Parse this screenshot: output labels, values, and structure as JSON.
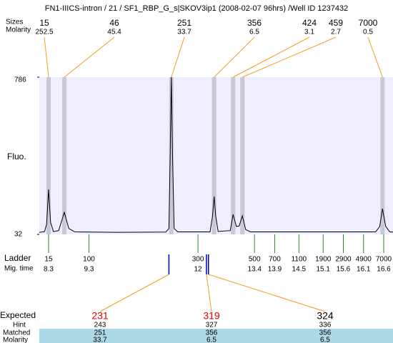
{
  "chart_data": {
    "type": "line",
    "title": "FN1-IIICS-intron / 21 / SF1_RBP_G_s|SKOV3ip1 (2008-02-07 96hrs) /Well ID 1237432",
    "sizes_label": "Sizes",
    "molarity_label": "Molarity",
    "y_label": "Fluo.",
    "ylim": [
      32,
      786
    ],
    "yticks": [
      32,
      786
    ],
    "xlim": [
      8.07,
      16.83
    ],
    "peaks": [
      {
        "size": 15,
        "molarity": 252.5,
        "time": 8.3
      },
      {
        "size": 46,
        "molarity": 45.4,
        "time": 8.69
      },
      {
        "size": 251,
        "molarity": 33.7,
        "time": 11.34
      },
      {
        "size": 356,
        "molarity": 6.5,
        "time": 12.4
      },
      {
        "size": 424,
        "molarity": 3.1,
        "time": 12.87
      },
      {
        "size": 459,
        "molarity": 2.7,
        "time": 13.1
      },
      {
        "size": 7000,
        "molarity": 0.5,
        "time": 16.57
      }
    ],
    "x": [
      8.07,
      8.2,
      8.25,
      8.3,
      8.35,
      8.42,
      8.55,
      8.69,
      8.8,
      8.95,
      10,
      11.2,
      11.28,
      11.31,
      11.34,
      11.37,
      11.41,
      11.5,
      12.3,
      12.36,
      12.4,
      12.44,
      12.5,
      12.8,
      12.87,
      12.95,
      13.02,
      13.1,
      13.18,
      13.3,
      16.4,
      16.5,
      16.57,
      16.65,
      16.75,
      16.83
    ],
    "values": [
      42,
      45,
      80,
      248,
      90,
      45,
      50,
      138,
      60,
      44,
      42,
      43,
      60,
      400,
      786,
      400,
      60,
      44,
      44,
      120,
      214,
      120,
      46,
      50,
      128,
      70,
      72,
      121,
      55,
      44,
      44,
      70,
      155,
      70,
      44,
      43
    ],
    "ladder_label": "Ladder",
    "mig_time_label": "Mig. time",
    "ladder": [
      {
        "size": 15,
        "time": 8.3
      },
      {
        "size": 100,
        "time": 9.3
      },
      {
        "size": 300,
        "time": 12
      },
      {
        "size": 500,
        "time": 13.4
      },
      {
        "size": 700,
        "time": 13.9
      },
      {
        "size": 1100,
        "time": 14.5
      },
      {
        "size": 1900,
        "time": 15.1
      },
      {
        "size": 2900,
        "time": 15.6
      },
      {
        "size": 4900,
        "time": 16.1
      },
      {
        "size": 7000,
        "time": 16.6
      }
    ],
    "expected_label": "Expected",
    "hint_label": "Hint",
    "matched_label": "Matched",
    "molarity_row_label": "Molarity",
    "expected": [
      {
        "expected": 231,
        "hint": 243,
        "matched": 251,
        "molarity": 33.7,
        "time": 11.28,
        "color": "#e00000"
      },
      {
        "expected": 319,
        "hint": 327,
        "matched": 356,
        "molarity": 6.5,
        "time": 12.21,
        "color": "#e00000"
      },
      {
        "expected": 324,
        "hint": 336,
        "matched": 356,
        "molarity": 6.5,
        "time": 12.26,
        "color": "#000000"
      }
    ]
  }
}
